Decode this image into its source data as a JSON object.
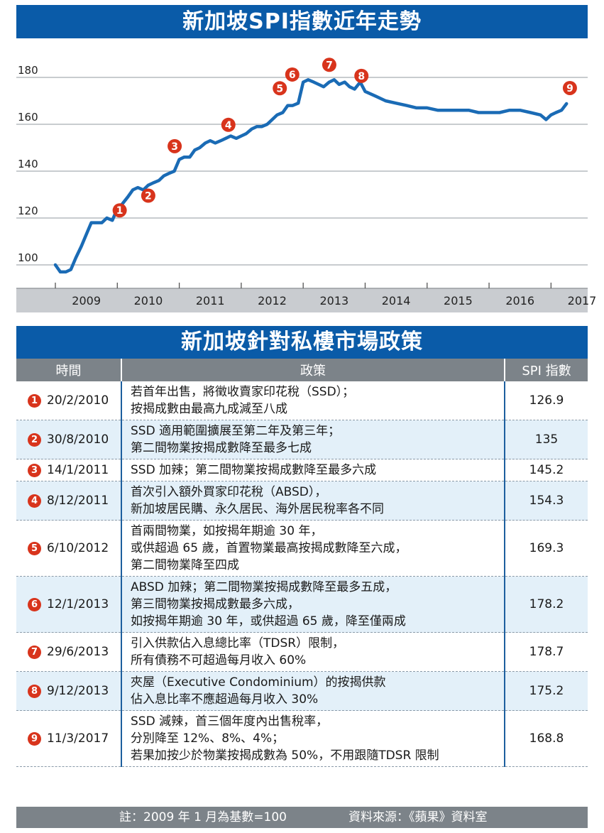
{
  "chart_title": "新加坡SPI指數近年走勢",
  "chart_data": {
    "type": "line",
    "xlabel": "",
    "ylabel": "",
    "x_ticks": [
      "2009",
      "2010",
      "2011",
      "2012",
      "2013",
      "2014",
      "2015",
      "2016",
      "2017"
    ],
    "y_ticks": [
      100,
      120,
      140,
      160,
      180
    ],
    "ylim": [
      90,
      190
    ],
    "xlim": [
      2009.0,
      2017.5
    ],
    "grid": "horizontal",
    "line_color": "#1a6bb5",
    "marker_color": "#d8341c",
    "series": [
      {
        "x": [
          2009.0,
          2009.08,
          2009.17,
          2009.25,
          2009.33,
          2009.42,
          2009.5,
          2009.58,
          2009.67,
          2009.75,
          2009.83,
          2009.92,
          2010.0,
          2010.08,
          2010.17,
          2010.25,
          2010.33,
          2010.42,
          2010.5,
          2010.58,
          2010.67,
          2010.75,
          2010.83,
          2010.92,
          2011.0,
          2011.08,
          2011.17,
          2011.25,
          2011.33,
          2011.42,
          2011.5,
          2011.58,
          2011.67,
          2011.75,
          2011.83,
          2011.92,
          2012.0,
          2012.08,
          2012.17,
          2012.25,
          2012.33,
          2012.42,
          2012.5,
          2012.58,
          2012.67,
          2012.75,
          2012.83,
          2012.92,
          2013.0,
          2013.08,
          2013.17,
          2013.25,
          2013.33,
          2013.42,
          2013.5,
          2013.58,
          2013.67,
          2013.75,
          2013.83,
          2013.92,
          2014.0,
          2014.17,
          2014.33,
          2014.5,
          2014.67,
          2014.83,
          2015.0,
          2015.17,
          2015.33,
          2015.5,
          2015.67,
          2015.83,
          2016.0,
          2016.17,
          2016.33,
          2016.5,
          2016.67,
          2016.83,
          2016.92,
          2017.0,
          2017.08,
          2017.17,
          2017.25
        ],
        "y": [
          100,
          97,
          97,
          98,
          103,
          108,
          113,
          118,
          118,
          118,
          120,
          119,
          124,
          126,
          129,
          132,
          133,
          132,
          134,
          135,
          136,
          138,
          139,
          140,
          145,
          146,
          146,
          149,
          150,
          152,
          153,
          152,
          153,
          154,
          155,
          154,
          155,
          156,
          158,
          159,
          159,
          160,
          162,
          164,
          165,
          168,
          168,
          169,
          178,
          179,
          178,
          177,
          176,
          178,
          179,
          177,
          178,
          176,
          175,
          178,
          174,
          172,
          170,
          169,
          168,
          167,
          167,
          166,
          166,
          166,
          166,
          165,
          165,
          165,
          166,
          166,
          165,
          164,
          162,
          164,
          165,
          166,
          168.8
        ]
      }
    ],
    "markers": [
      {
        "label": "1",
        "x": 2010.13,
        "y": 126.9
      },
      {
        "label": "2",
        "x": 2010.66,
        "y": 135
      },
      {
        "label": "3",
        "x": 2011.04,
        "y": 145.2
      },
      {
        "label": "4",
        "x": 2011.93,
        "y": 154.3
      },
      {
        "label": "5",
        "x": 2012.76,
        "y": 169.3
      },
      {
        "label": "6",
        "x": 2013.03,
        "y": 178.2
      },
      {
        "label": "7",
        "x": 2013.49,
        "y": 178.7
      },
      {
        "label": "8",
        "x": 2013.94,
        "y": 175.2
      },
      {
        "label": "9",
        "x": 2017.19,
        "y": 168.8
      }
    ]
  },
  "policy_section_title": "新加坡針對私樓市場政策",
  "table": {
    "headers": [
      "時間",
      "政策",
      "SPI 指數"
    ],
    "rows": [
      {
        "num": "1",
        "date": "20/2/2010",
        "policy": [
          "若首年出售，將徵收賣家印花稅（SSD）；",
          "按揭成數由最高九成減至八成"
        ],
        "spi": "126.9"
      },
      {
        "num": "2",
        "date": "30/8/2010",
        "policy": [
          "SSD 適用範圍擴展至第二年及第三年；",
          "第二間物業按揭成數降至最多七成"
        ],
        "spi": "135"
      },
      {
        "num": "3",
        "date": "14/1/2011",
        "policy": [
          "SSD 加辣；第二間物業按揭成數降至最多六成"
        ],
        "spi": "145.2"
      },
      {
        "num": "4",
        "date": "8/12/2011",
        "policy": [
          "首次引入額外買家印花稅（ABSD），",
          "新加坡居民購、永久居民、海外居民稅率各不同"
        ],
        "spi": "154.3"
      },
      {
        "num": "5",
        "date": "6/10/2012",
        "policy": [
          "首兩間物業，如按揭年期逾 30 年，",
          "或供超過 65 歲，首置物業最高按揭成數降至六成，",
          "第二間物業降至四成"
        ],
        "spi": "169.3"
      },
      {
        "num": "6",
        "date": "12/1/2013",
        "policy": [
          "ABSD 加辣；第二間物業按揭成數降至最多五成，",
          "第三間物業按揭成數最多六成，",
          "如按揭年期逾 30 年，或供超過 65 歲，降至僅兩成"
        ],
        "spi": "178.2"
      },
      {
        "num": "7",
        "date": "29/6/2013",
        "policy": [
          "引入供款佔入息總比率（TDSR）限制，",
          "所有債務不可超過每月收入 60%"
        ],
        "spi": "178.7"
      },
      {
        "num": "8",
        "date": "9/12/2013",
        "policy": [
          "夾屋（Executive Condominium）的按揭供款",
          "佔入息比率不應超過每月收入 30%"
        ],
        "spi": "175.2"
      },
      {
        "num": "9",
        "date": "11/3/2017",
        "policy": [
          "SSD 減辣，首三個年度內出售稅率，",
          "分別降至 12%、8%、4%；",
          "若果加按少於物業按揭成數為 50%，不用跟隨TDSR 限制"
        ],
        "spi": "168.8"
      }
    ]
  },
  "footer": {
    "note": "註：2009 年 1 月為基數=100",
    "source": "資料來源：《蘋果》資料室"
  }
}
